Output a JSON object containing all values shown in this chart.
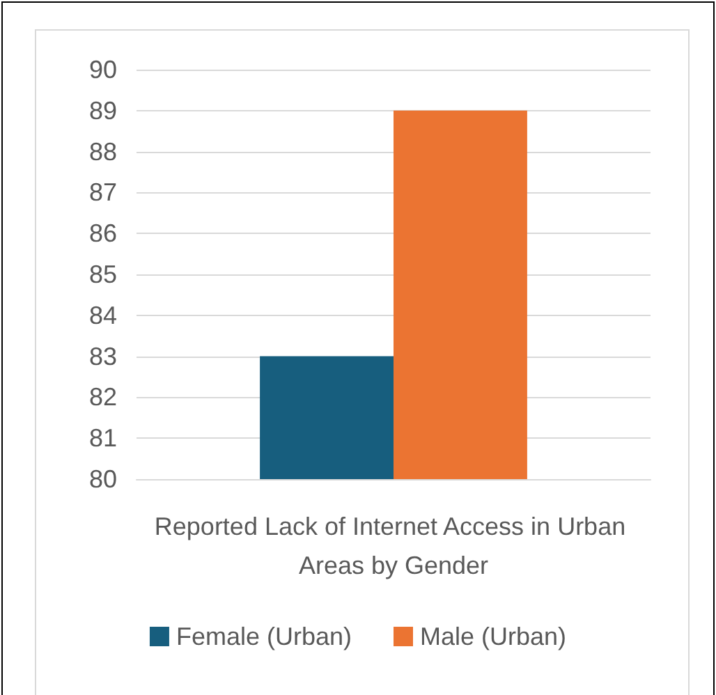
{
  "chart_data": {
    "type": "bar",
    "categories": [
      "Reported Lack of Internet Access in Urban Areas by Gender"
    ],
    "series": [
      {
        "name": "Female (Urban)",
        "color": "#175e7e",
        "values": [
          83
        ]
      },
      {
        "name": "Male (Urban)",
        "color": "#eb7432",
        "values": [
          89
        ]
      }
    ],
    "ylim": [
      80,
      90
    ],
    "yticks": [
      80,
      81,
      82,
      83,
      84,
      85,
      86,
      87,
      88,
      89,
      90
    ],
    "grid": "y",
    "legend": "bottom"
  }
}
